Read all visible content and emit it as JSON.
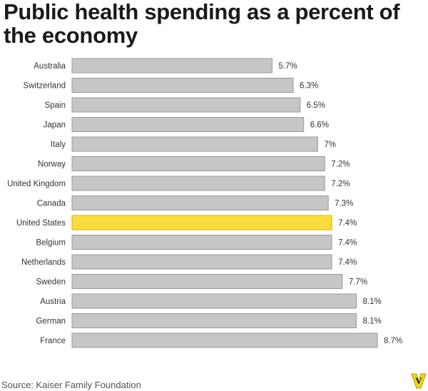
{
  "chart_data": {
    "type": "bar",
    "orientation": "horizontal",
    "title": "Public health spending as a percent of the economy",
    "categories": [
      "Australia",
      "Switzerland",
      "Spain",
      "Japan",
      "Italy",
      "Norway",
      "United Kingdom",
      "Canada",
      "United States",
      "Belgium",
      "Netherlands",
      "Sweden",
      "Austria",
      "German",
      "France"
    ],
    "values": [
      5.7,
      6.3,
      6.5,
      6.6,
      7,
      7.2,
      7.2,
      7.3,
      7.4,
      7.4,
      7.4,
      7.7,
      8.1,
      8.1,
      8.7
    ],
    "value_labels": [
      "5.7%",
      "6.3%",
      "6.5%",
      "6.6%",
      "7%",
      "7.2%",
      "7.2%",
      "7.3%",
      "7.4%",
      "7.4%",
      "7.4%",
      "7.7%",
      "8.1%",
      "8.1%",
      "8.7%"
    ],
    "xlim": [
      0,
      8.7
    ],
    "grid": false,
    "bar_color": "#c6c6c6",
    "bar_border_color": "#9a9a9a",
    "highlight": "United States",
    "highlight_color": "#fcdc3c",
    "highlight_border_color": "#d6b400"
  },
  "source": "Source: Kaiser Family Foundation",
  "logo": {
    "icon": "vox-logo-icon",
    "letter": "V",
    "color": "#f2d31d"
  }
}
